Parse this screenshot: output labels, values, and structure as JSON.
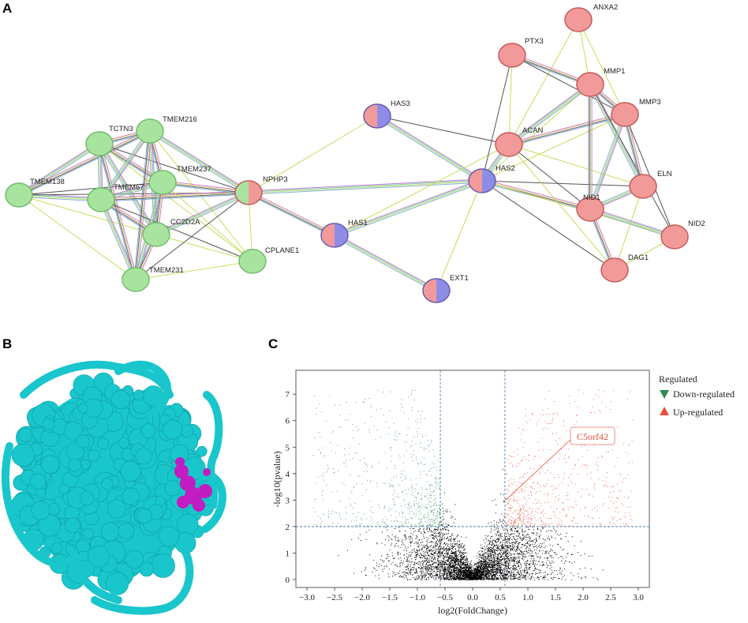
{
  "panels": {
    "a": "A",
    "b": "B",
    "c": "C"
  },
  "network": {
    "nodes": [
      {
        "id": "TMEM138",
        "cluster": "green"
      },
      {
        "id": "TCTN3",
        "cluster": "green"
      },
      {
        "id": "TMEM216",
        "cluster": "green"
      },
      {
        "id": "TMEM67",
        "cluster": "green"
      },
      {
        "id": "TMEM237",
        "cluster": "green"
      },
      {
        "id": "CC2D2A",
        "cluster": "green"
      },
      {
        "id": "TMEM231",
        "cluster": "green"
      },
      {
        "id": "CPLANE1",
        "cluster": "green"
      },
      {
        "id": "NPHP3",
        "cluster": "green-red"
      },
      {
        "id": "HAS3",
        "cluster": "red-blue"
      },
      {
        "id": "HAS1",
        "cluster": "red-blue"
      },
      {
        "id": "EXT1",
        "cluster": "red-blue"
      },
      {
        "id": "HAS2",
        "cluster": "red-blue"
      },
      {
        "id": "ACAN",
        "cluster": "red"
      },
      {
        "id": "PTX3",
        "cluster": "red"
      },
      {
        "id": "ANXA2",
        "cluster": "red"
      },
      {
        "id": "MMP1",
        "cluster": "red"
      },
      {
        "id": "MMP3",
        "cluster": "red"
      },
      {
        "id": "ELN",
        "cluster": "red"
      },
      {
        "id": "NID1",
        "cluster": "red"
      },
      {
        "id": "NID2",
        "cluster": "red"
      },
      {
        "id": "DAG1",
        "cluster": "red"
      }
    ],
    "colors": {
      "green": "#a8e4a0",
      "green_stroke": "#6ebf68",
      "red": "#f29a9a",
      "red_stroke": "#c75a5a",
      "blue": "#8d8de8"
    }
  },
  "structure": {
    "colors": {
      "protein": "#19c6cc",
      "site": "#c21cc2"
    }
  },
  "chart_data": {
    "type": "scatter",
    "xlabel": "log2(FoldChange)",
    "ylabel": "-log10(pvalue)",
    "xlim": [
      -3.2,
      3.2
    ],
    "ylim": [
      -0.3,
      7.9
    ],
    "xticks": [
      "−3.0",
      "−2.5",
      "−2.0",
      "−1.5",
      "−1.0",
      "−0.5",
      "0.0",
      "0.5",
      "1.0",
      "1.5",
      "2.0",
      "2.5",
      "3.0"
    ],
    "yticks": [
      "0",
      "1",
      "2",
      "3",
      "4",
      "5",
      "6",
      "7"
    ],
    "thresholds": {
      "x": [
        -0.585,
        0.585
      ],
      "y": 2
    },
    "legend": {
      "title": "Regulated",
      "items": [
        {
          "label": "Down-regulated",
          "color": "#2e8b57"
        },
        {
          "label": "Up-regulated",
          "color": "#e8503e"
        }
      ]
    },
    "annotation": {
      "label": "C5orf42",
      "x": 0.6,
      "y": 3.0
    },
    "colors": {
      "not_significant": "#000000",
      "down": "#5fa37a",
      "up": "#e8705a",
      "threshold_line": "#4a7fb5"
    }
  }
}
